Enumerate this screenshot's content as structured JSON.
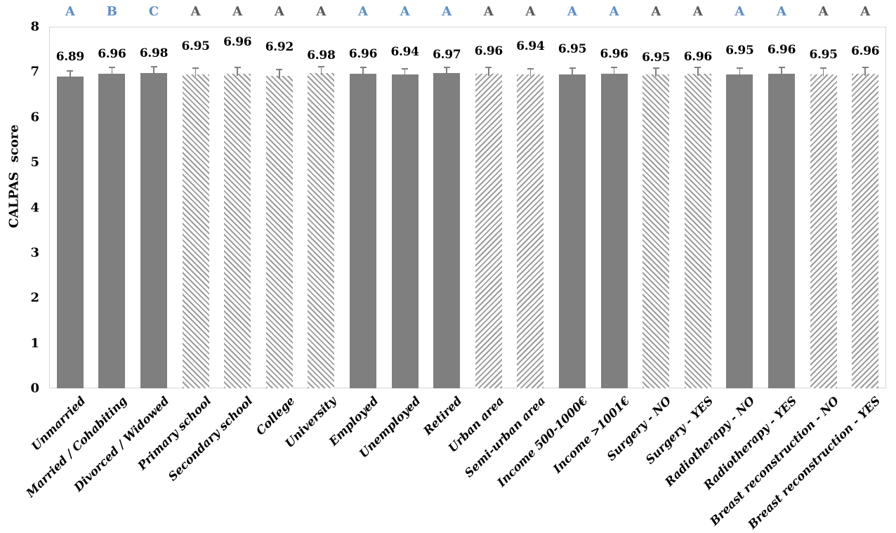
{
  "chart_data": {
    "type": "bar",
    "title": "",
    "xlabel": "",
    "ylabel": "CALPAS score",
    "ylim": [
      0,
      8
    ],
    "yticks": [
      0,
      1,
      2,
      3,
      4,
      5,
      6,
      7,
      8
    ],
    "grid": false,
    "legend": null,
    "categories": [
      "Unmarried",
      "Married / Cohabiting",
      "Divorced / Widowed",
      "Primary school",
      "Secondary school",
      "College",
      "University",
      "Employed",
      "Unemployed",
      "Retired",
      "Urban area",
      "Semi-urban area",
      "Income 500-1000€",
      "Income >1001€",
      "Surgery - NO",
      "Surgery - YES",
      "Radiotherapy - NO",
      "Radiotherapy - YES",
      "Breast reconstruction - NO",
      "Breast reconstruction - YES"
    ],
    "values": [
      6.89,
      6.96,
      6.98,
      6.95,
      6.96,
      6.92,
      6.98,
      6.96,
      6.94,
      6.97,
      6.96,
      6.94,
      6.95,
      6.96,
      6.95,
      6.96,
      6.95,
      6.96,
      6.95,
      6.96
    ],
    "value_labels": [
      "6.89",
      "6.96",
      "6.98",
      "6.95",
      "6.96",
      "6.92",
      "6.98",
      "6.96",
      "6.94",
      "6.97",
      "6.96",
      "6.94",
      "6.95",
      "6.96",
      "6.95",
      "6.96",
      "6.95",
      "6.96",
      "6.95",
      "6.96"
    ],
    "significance_letters": [
      "A",
      "B",
      "C",
      "A",
      "A",
      "A",
      "A",
      "A",
      "A",
      "A",
      "A",
      "A",
      "A",
      "A",
      "A",
      "A",
      "A",
      "A",
      "A",
      "A"
    ],
    "letter_styles": [
      "blue",
      "blue",
      "blue",
      "gray",
      "gray",
      "gray",
      "gray",
      "blue",
      "blue",
      "blue",
      "gray",
      "gray",
      "blue",
      "blue",
      "gray",
      "gray",
      "blue",
      "blue",
      "gray",
      "gray"
    ],
    "bar_fills": [
      "solid",
      "solid",
      "solid",
      "hatch-down",
      "hatch-down",
      "hatch-down",
      "hatch-down",
      "solid",
      "solid",
      "solid",
      "hatch-up",
      "hatch-up",
      "solid",
      "solid",
      "hatch-down",
      "hatch-down",
      "solid",
      "solid",
      "hatch-up",
      "hatch-up"
    ],
    "error_bar": 0.12,
    "label_dy": [
      0,
      0,
      0,
      -12,
      -17,
      -13,
      3,
      0,
      -4,
      2,
      -4,
      -12,
      -8,
      0,
      4,
      4,
      -6,
      -6,
      0,
      -4
    ],
    "colors": {
      "solid_bar": "#7f7f7f",
      "hatch_stripe": "#9b9b9b",
      "hatch_bg": "#ffffff",
      "frame": "#d6d6d6",
      "letter_blue": "#5b8ec6",
      "letter_gray": "#595959",
      "error_bar": "#7f7f7f",
      "text": "#000000",
      "background": "#ffffff"
    }
  }
}
